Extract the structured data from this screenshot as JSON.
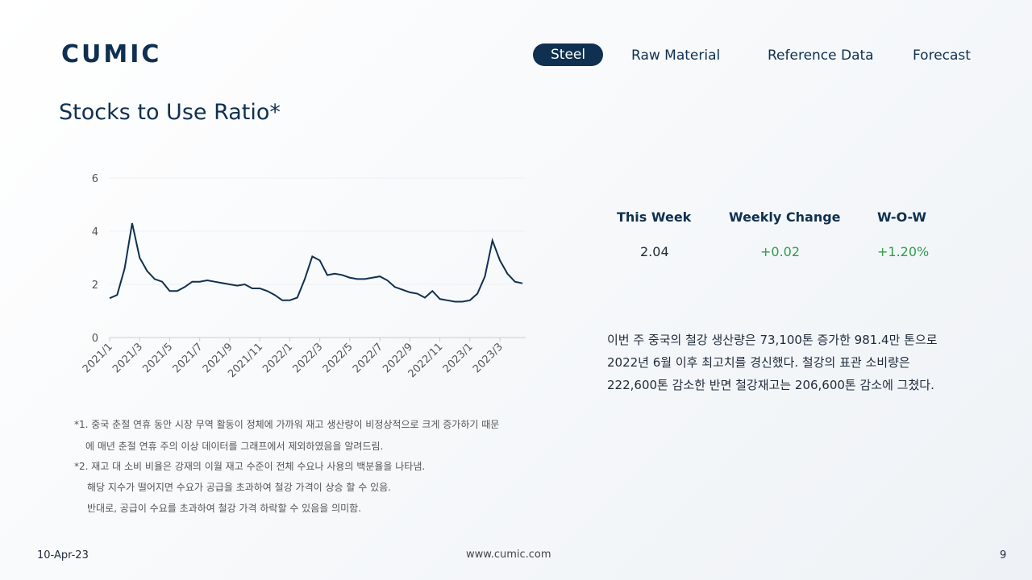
{
  "header": {
    "logo": "CUMIC",
    "nav": [
      "Steel",
      "Raw Material",
      "Reference Data",
      "Forecast"
    ]
  },
  "title": "Stocks to Use Ratio*",
  "chart_data": {
    "type": "line",
    "categories": [
      "2021/1",
      null,
      null,
      null,
      "2021/3",
      null,
      null,
      null,
      "2021/5",
      null,
      null,
      null,
      "2021/7",
      null,
      null,
      null,
      "2021/9",
      null,
      null,
      null,
      "2021/11",
      null,
      null,
      null,
      "2022/1",
      null,
      null,
      null,
      "2022/3",
      null,
      null,
      null,
      "2022/5",
      null,
      null,
      null,
      "2022/7",
      null,
      null,
      null,
      "2022/9",
      null,
      null,
      null,
      "2022/11",
      null,
      null,
      null,
      "2023/1",
      null,
      null,
      null,
      "2023/3",
      null,
      null,
      null
    ],
    "series": [
      {
        "name": "Stocks to Use Ratio",
        "color": "#0f3050",
        "values": [
          1.48,
          1.6,
          2.6,
          4.3,
          3.0,
          2.5,
          2.2,
          2.1,
          1.75,
          1.75,
          1.9,
          2.1,
          2.1,
          2.15,
          2.1,
          2.05,
          2.0,
          1.95,
          2.0,
          1.85,
          1.85,
          1.75,
          1.6,
          1.4,
          1.4,
          1.5,
          2.2,
          3.05,
          2.9,
          2.35,
          2.4,
          2.35,
          2.25,
          2.2,
          2.2,
          2.25,
          2.3,
          2.15,
          1.9,
          1.8,
          1.7,
          1.65,
          1.5,
          1.75,
          1.45,
          1.4,
          1.35,
          1.35,
          1.4,
          1.65,
          2.3,
          3.65,
          2.9,
          2.4,
          2.1,
          2.04
        ]
      }
    ],
    "ylim": [
      0,
      6
    ],
    "yticks": [
      0,
      2,
      4,
      6
    ],
    "grid": true
  },
  "stats": {
    "headers": [
      "This Week",
      "Weekly Change",
      "W-O-W"
    ],
    "values": [
      "2.04",
      "+0.02",
      "+1.20%"
    ]
  },
  "description": [
    "이번 주 중국의 철강 생산량은 73,100톤 증가한 981.4만 톤으로",
    "2022년 6월 이후 최고치를 경신했다. 철강의 표관 소비량은",
    "222,600톤 감소한 반면 철강재고는 206,600톤 감소에 그쳤다."
  ],
  "notes": [
    "*1. 중국 춘절 연휴 동안 시장 무역 활동이 정체에 가까워 재고 생산량이 비정상적으로 크게 증가하기 때문",
    "에 매년 춘절 연휴 주의 이상 데이터를 그래프에서 제외하였음을 알려드림.",
    "*2. 재고 대 소비 비율은 강재의 이월 재고 수준이 전체 수요나 사용의 백분율을 나타냄.",
    "해당 지수가 떨어지면 수요가 공급을 초과하여 철강 가격이 상승 할 수 있음.",
    "반대로, 공급이 수요를 초과하여 철강 가격 하락할 수 있음을 의미함."
  ],
  "footer": {
    "date": "10-Apr-23",
    "url": "www.cumic.com",
    "page": "9"
  }
}
